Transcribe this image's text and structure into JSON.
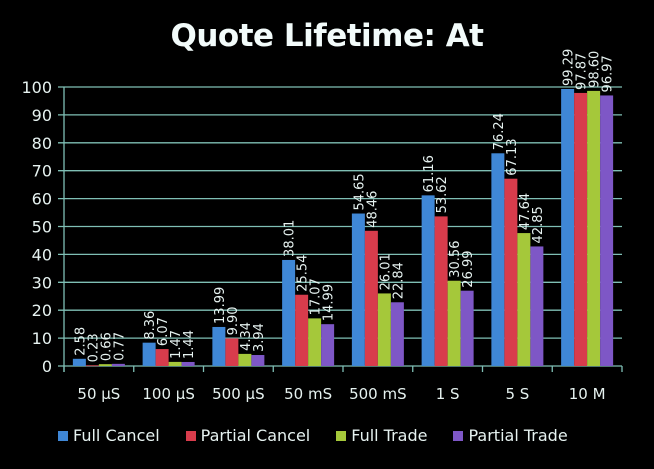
{
  "chart_data": {
    "type": "bar",
    "title": "Quote Lifetime: At",
    "xlabel": "",
    "ylabel": "",
    "ylim": [
      0,
      100
    ],
    "yticks": [
      0,
      10,
      20,
      30,
      40,
      50,
      60,
      70,
      80,
      90,
      100
    ],
    "grid": true,
    "legend_position": "bottom",
    "categories": [
      "50 µS",
      "100 µS",
      "500 µS",
      "50 mS",
      "500 mS",
      "1 S",
      "5 S",
      "10 M"
    ],
    "series": [
      {
        "name": "Full Cancel",
        "color": "#3f87d6",
        "values": [
          2.58,
          8.36,
          13.99,
          38.01,
          54.65,
          61.16,
          76.24,
          99.29
        ]
      },
      {
        "name": "Partial Cancel",
        "color": "#d83c4c",
        "values": [
          0.23,
          6.07,
          9.9,
          25.54,
          48.46,
          53.62,
          67.13,
          97.87
        ]
      },
      {
        "name": "Full Trade",
        "color": "#a5c83a",
        "values": [
          0.66,
          1.47,
          4.34,
          17.07,
          26.01,
          30.56,
          47.64,
          98.6
        ]
      },
      {
        "name": "Partial Trade",
        "color": "#7e57c6",
        "values": [
          0.77,
          1.44,
          3.94,
          14.99,
          22.84,
          26.99,
          42.85,
          96.97
        ]
      }
    ],
    "data_labels": [
      [
        "2.58",
        "8.36",
        "13.99",
        "38.01",
        "54.65",
        "61.16",
        "76.24",
        "99.29"
      ],
      [
        "0.23",
        "6.07",
        "9.90",
        "25.54",
        "48.46",
        "53.62",
        "67.13",
        "97.87"
      ],
      [
        "0.66",
        "1.47",
        "4.34",
        "17.07",
        "26.01",
        "30.56",
        "47.64",
        "98.60"
      ],
      [
        "0.77",
        "1.44",
        "3.94",
        "14.99",
        "22.84",
        "26.99",
        "42.85",
        "96.97"
      ]
    ]
  },
  "colors": {
    "background": "#000000",
    "gridline": "#7fbfb5",
    "text": "#e6f2f0"
  }
}
